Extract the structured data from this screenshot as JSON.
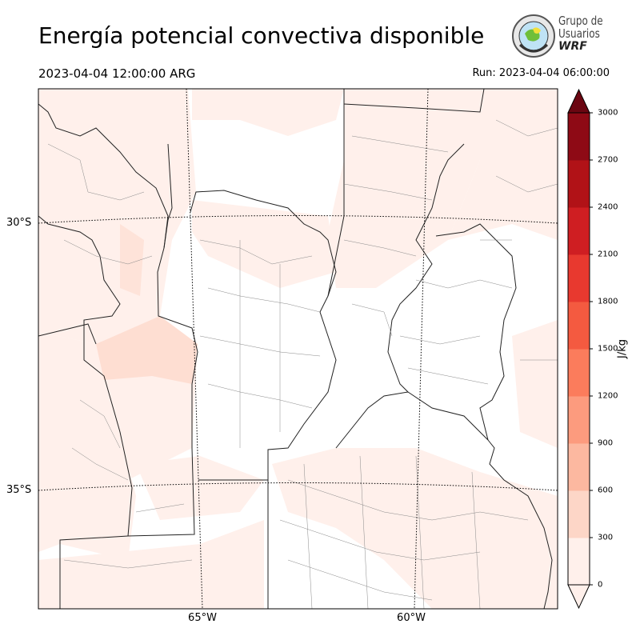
{
  "header": {
    "title": "Energía potencial convectiva disponible",
    "valid_time": "2023-04-04 12:00:00 ARG",
    "run_time": "Run: 2023-04-04 06:00:00"
  },
  "logo": {
    "line1": "Grupo de",
    "line2": "Usuarios",
    "line3": "WRF"
  },
  "map": {
    "lat_labels": [
      "30°S",
      "35°S"
    ],
    "lon_labels": [
      "65°W",
      "60°W"
    ]
  },
  "colorbar": {
    "label": "J/kg",
    "ticks": [
      "0",
      "300",
      "600",
      "900",
      "1200",
      "1500",
      "1800",
      "2100",
      "2400",
      "2700",
      "3000"
    ],
    "colors": [
      "#fff0eb",
      "#fdd6c7",
      "#fcb8a0",
      "#fc9b7e",
      "#fb7c5c",
      "#f45a40",
      "#e8392f",
      "#cf1e22",
      "#b11217",
      "#8e0a15",
      "#6b0611"
    ],
    "extend": "both"
  }
}
